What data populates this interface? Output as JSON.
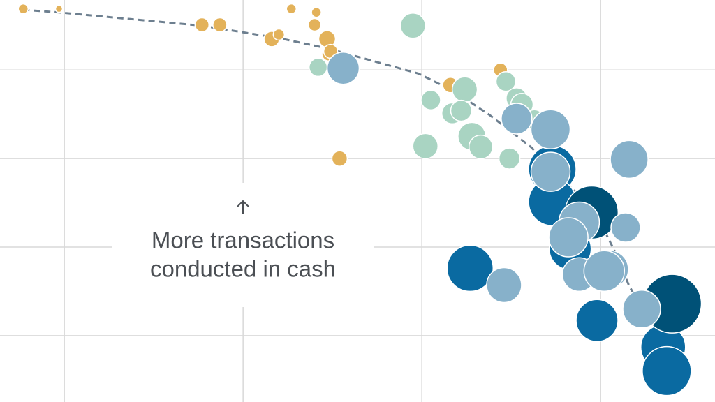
{
  "chart_data": {
    "type": "bubble",
    "xlim": [
      0.64,
      4.64
    ],
    "ylim": [
      0.25,
      4.79
    ],
    "xticks": [
      1,
      2,
      3,
      4
    ],
    "yticks": [
      1,
      2,
      3,
      4
    ],
    "grid": true,
    "annotation": [
      "More transactions",
      "conducted in cash"
    ],
    "trend": {
      "color": "#6d7f8f",
      "style": "dashed",
      "x": [
        0.77,
        0.97,
        1.77,
        2.2,
        2.48,
        2.98,
        3.18,
        3.38,
        3.61,
        3.8,
        3.96,
        4.08,
        4.16,
        4.23
      ],
      "values": [
        4.68,
        4.65,
        4.5,
        4.36,
        4.24,
        3.96,
        3.76,
        3.49,
        3.13,
        2.74,
        2.43,
        1.95,
        1.56,
        1.32
      ]
    },
    "series": [
      {
        "color": "#e3b25a",
        "x": [
          0.77,
          0.97,
          1.77,
          1.87,
          2.27,
          2.41,
          2.4,
          2.16,
          2.2,
          2.47,
          2.48,
          2.49,
          3.44,
          3.16,
          2.54
        ],
        "values": [
          4.69,
          4.69,
          4.51,
          4.51,
          4.69,
          4.65,
          4.51,
          4.35,
          4.4,
          4.35,
          4.18,
          4.21,
          4.0,
          3.83,
          3.0
        ],
        "sizes": [
          0.7,
          0.5,
          1.0,
          1.0,
          0.7,
          0.7,
          0.9,
          1.1,
          0.8,
          1.2,
          1.0,
          1.0,
          1.0,
          1.1,
          1.1
        ]
      },
      {
        "color": "#a9d4c2",
        "x": [
          2.95,
          2.42,
          3.05,
          3.24,
          3.17,
          3.22,
          3.02,
          3.28,
          3.33,
          3.49,
          3.47,
          3.53,
          3.56,
          3.63,
          3.87
        ],
        "values": [
          4.5,
          4.03,
          3.66,
          3.78,
          3.51,
          3.54,
          3.14,
          3.25,
          3.13,
          3.0,
          3.87,
          3.68,
          3.61,
          3.44,
          2.02
        ],
        "sizes": [
          1.8,
          1.3,
          1.4,
          1.8,
          1.5,
          1.5,
          1.8,
          2.0,
          1.7,
          1.5,
          1.4,
          1.5,
          1.6,
          1.4,
          1.7
        ]
      },
      {
        "color": "#0a6aa1",
        "x": [
          3.73,
          3.73,
          3.27,
          3.83,
          3.98,
          4.35,
          4.37
        ],
        "values": [
          2.88,
          2.51,
          1.76,
          1.98,
          1.17,
          0.87,
          0.6
        ],
        "sizes": [
          3.4,
          3.4,
          3.3,
          3.0,
          3.0,
          3.2,
          3.5
        ]
      },
      {
        "color": "#005177",
        "x": [
          3.95,
          4.4
        ],
        "values": [
          2.39,
          1.36
        ],
        "sizes": [
          3.8,
          4.2
        ]
      },
      {
        "color": "#87b1ca",
        "x": [
          2.56,
          3.72,
          4.16,
          3.53,
          3.72,
          3.46,
          4.14,
          3.88,
          3.82,
          3.88,
          4.05,
          4.02,
          4.23
        ],
        "values": [
          4.02,
          3.33,
          2.99,
          3.45,
          2.85,
          1.57,
          2.22,
          2.28,
          2.11,
          1.69,
          1.75,
          1.73,
          1.3
        ],
        "sizes": [
          2.3,
          2.8,
          2.7,
          2.2,
          2.8,
          2.5,
          2.1,
          2.9,
          2.8,
          2.4,
          2.7,
          2.9,
          2.7
        ]
      }
    ]
  }
}
